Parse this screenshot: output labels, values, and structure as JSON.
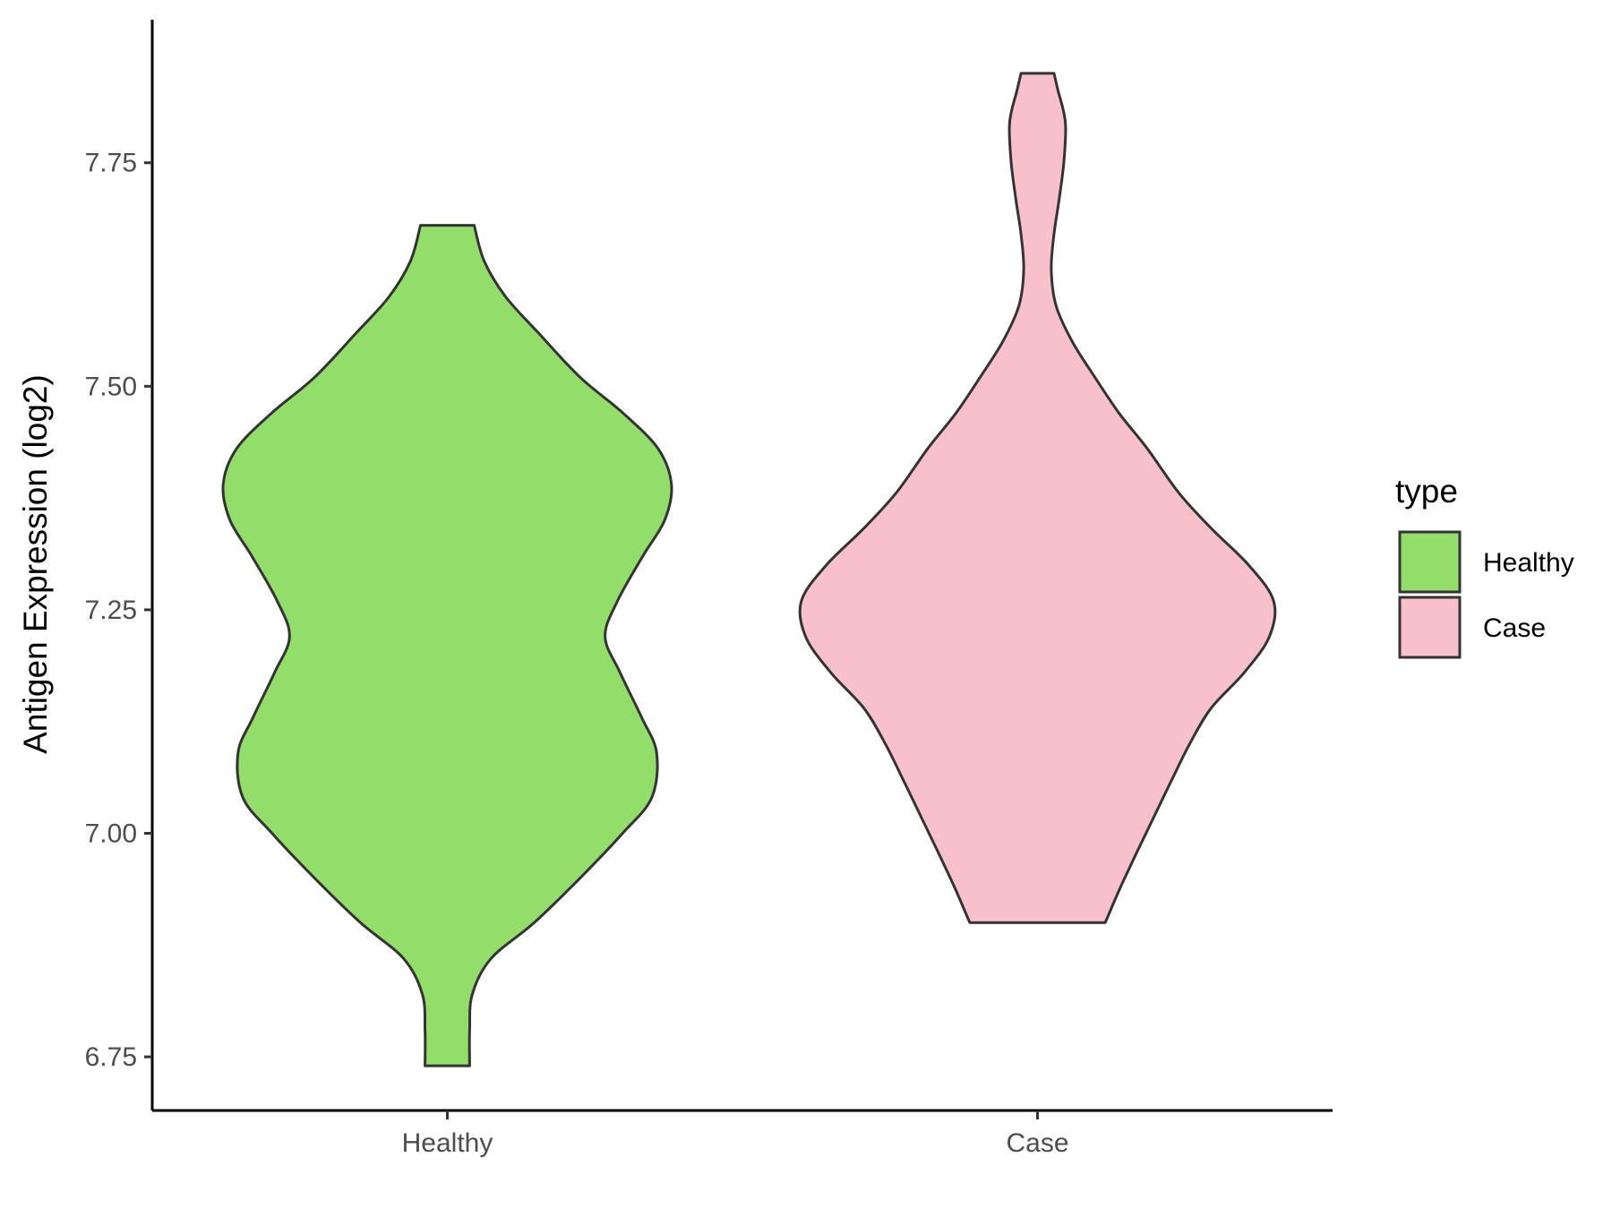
{
  "chart_data": {
    "type": "violin",
    "ylabel": "Antigen Expression (log2)",
    "xlabel": "",
    "ylim": [
      6.69,
      7.91
    ],
    "yticks": [
      6.75,
      7.0,
      7.25,
      7.5,
      7.75
    ],
    "ytick_labels": [
      "6.75",
      "7.00",
      "7.25",
      "7.50",
      "7.75"
    ],
    "categories": [
      "Healthy",
      "Case"
    ],
    "grid": false,
    "legend": {
      "title": "type",
      "position": "right",
      "entries": [
        {
          "label": "Healthy",
          "color": "#93dd6a"
        },
        {
          "label": "Case",
          "color": "#f7c0cb"
        }
      ]
    },
    "series": [
      {
        "name": "Healthy",
        "color": "#93dd6a",
        "min": 6.74,
        "max": 7.68,
        "profile": [
          [
            6.74,
            0.084
          ],
          [
            6.78,
            0.084
          ],
          [
            6.82,
            0.094
          ],
          [
            6.86,
            0.165
          ],
          [
            6.9,
            0.327
          ],
          [
            6.95,
            0.5
          ],
          [
            7.0,
            0.66
          ],
          [
            7.04,
            0.77
          ],
          [
            7.09,
            0.788
          ],
          [
            7.13,
            0.731
          ],
          [
            7.18,
            0.65
          ],
          [
            7.22,
            0.594
          ],
          [
            7.26,
            0.641
          ],
          [
            7.31,
            0.736
          ],
          [
            7.35,
            0.818
          ],
          [
            7.39,
            0.844
          ],
          [
            7.43,
            0.794
          ],
          [
            7.47,
            0.662
          ],
          [
            7.51,
            0.5
          ],
          [
            7.56,
            0.342
          ],
          [
            7.6,
            0.22
          ],
          [
            7.64,
            0.139
          ],
          [
            7.68,
            0.101
          ]
        ]
      },
      {
        "name": "Case",
        "color": "#f7c0cb",
        "min": 6.9,
        "max": 7.85,
        "profile": [
          [
            6.9,
            0.255
          ],
          [
            6.94,
            0.313
          ],
          [
            6.98,
            0.376
          ],
          [
            7.02,
            0.441
          ],
          [
            7.06,
            0.506
          ],
          [
            7.1,
            0.573
          ],
          [
            7.14,
            0.654
          ],
          [
            7.18,
            0.779
          ],
          [
            7.22,
            0.873
          ],
          [
            7.26,
            0.889
          ],
          [
            7.3,
            0.795
          ],
          [
            7.34,
            0.658
          ],
          [
            7.38,
            0.534
          ],
          [
            7.43,
            0.414
          ],
          [
            7.47,
            0.307
          ],
          [
            7.51,
            0.216
          ],
          [
            7.55,
            0.131
          ],
          [
            7.59,
            0.07
          ],
          [
            7.63,
            0.052
          ],
          [
            7.67,
            0.062
          ],
          [
            7.71,
            0.082
          ],
          [
            7.75,
            0.099
          ],
          [
            7.79,
            0.106
          ],
          [
            7.81,
            0.096
          ],
          [
            7.83,
            0.078
          ],
          [
            7.85,
            0.062
          ]
        ]
      }
    ]
  }
}
